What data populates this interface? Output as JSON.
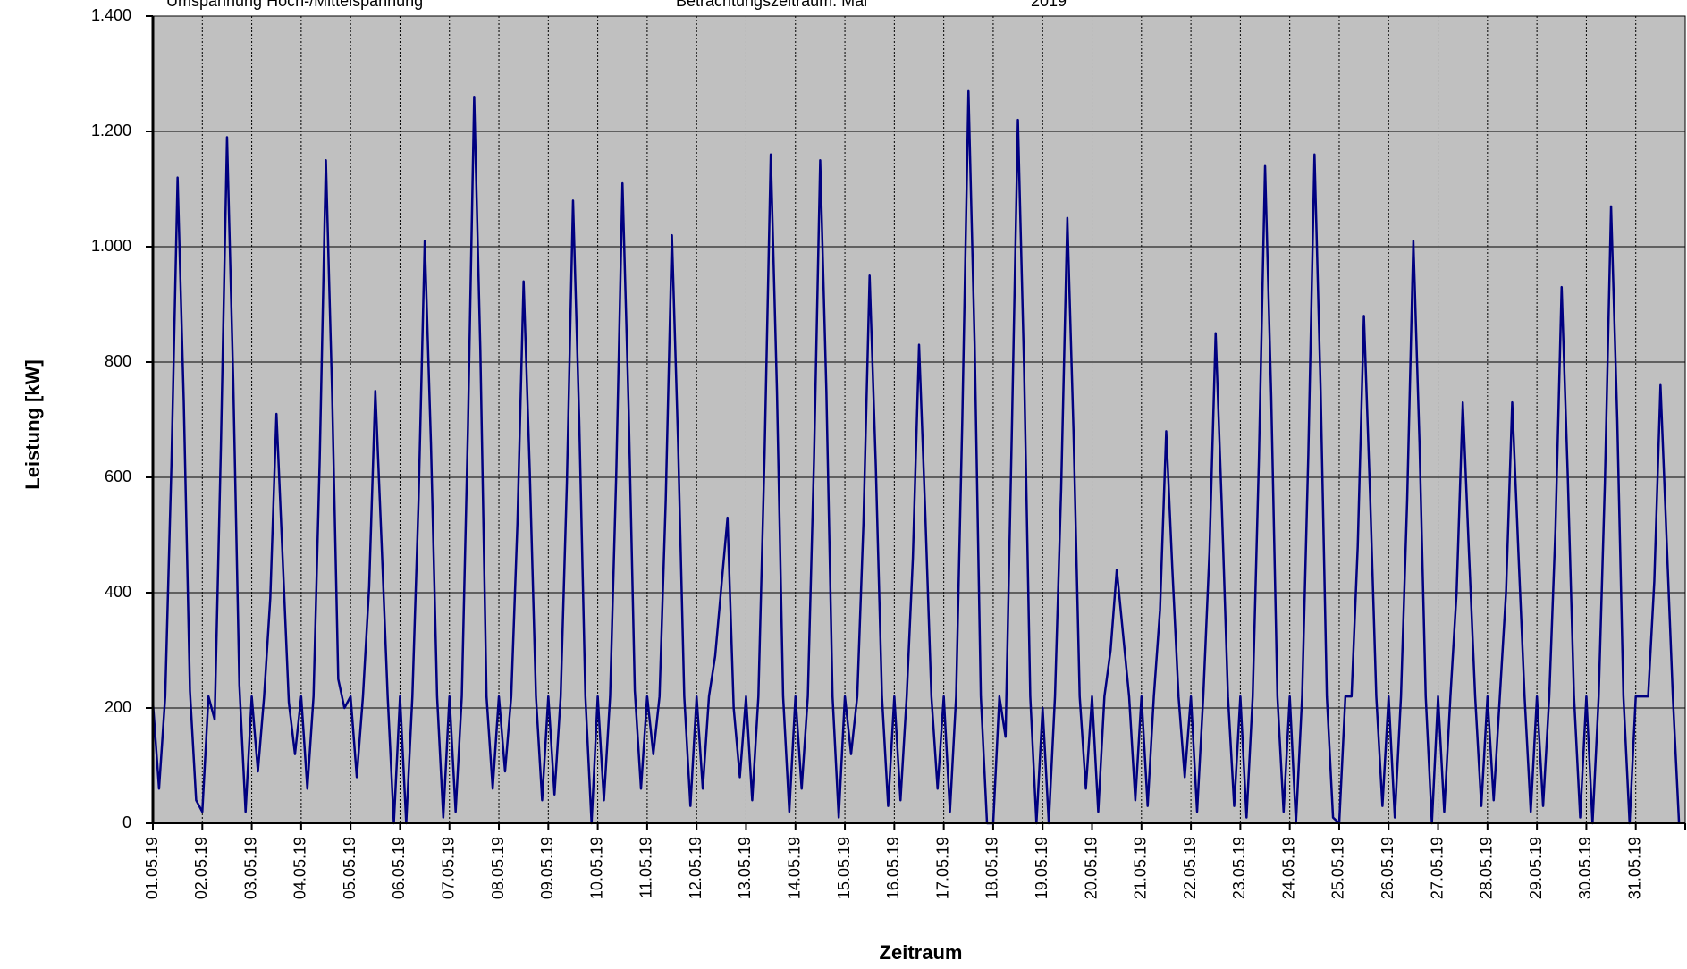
{
  "chart_data": {
    "type": "line",
    "title": "Umspannung Hoch-/Mittelspannung",
    "subtitle": "Betrachtungszeitraum: Mai",
    "year": "2019",
    "x_label": "Zeitraum",
    "y_label": "Leistung [kW]",
    "categories": [
      "01.05.19",
      null,
      null,
      null,
      null,
      null,
      null,
      null,
      "02.05.19",
      null,
      null,
      null,
      null,
      null,
      null,
      null,
      "03.05.19",
      null,
      null,
      null,
      null,
      null,
      null,
      null,
      "04.05.19",
      null,
      null,
      null,
      null,
      null,
      null,
      null,
      "05.05.19",
      null,
      null,
      null,
      null,
      null,
      null,
      null,
      "06.05.19",
      null,
      null,
      null,
      null,
      null,
      null,
      null,
      "07.05.19",
      null,
      null,
      null,
      null,
      null,
      null,
      null,
      "08.05.19",
      null,
      null,
      null,
      null,
      null,
      null,
      null,
      "09.05.19",
      null,
      null,
      null,
      null,
      null,
      null,
      null,
      "10.05.19",
      null,
      null,
      null,
      null,
      null,
      null,
      null,
      "11.05.19",
      null,
      null,
      null,
      null,
      null,
      null,
      null,
      "12.05.19",
      null,
      null,
      null,
      null,
      null,
      null,
      null,
      "13.05.19",
      null,
      null,
      null,
      null,
      null,
      null,
      null,
      "14.05.19",
      null,
      null,
      null,
      null,
      null,
      null,
      null,
      "15.05.19",
      null,
      null,
      null,
      null,
      null,
      null,
      null,
      "16.05.19",
      null,
      null,
      null,
      null,
      null,
      null,
      null,
      "17.05.19",
      null,
      null,
      null,
      null,
      null,
      null,
      null,
      "18.05.19",
      null,
      null,
      null,
      null,
      null,
      null,
      null,
      "19.05.19",
      null,
      null,
      null,
      null,
      null,
      null,
      null,
      "20.05.19",
      null,
      null,
      null,
      null,
      null,
      null,
      null,
      "21.05.19",
      null,
      null,
      null,
      null,
      null,
      null,
      null,
      "22.05.19",
      null,
      null,
      null,
      null,
      null,
      null,
      null,
      "23.05.19",
      null,
      null,
      null,
      null,
      null,
      null,
      null,
      "24.05.19",
      null,
      null,
      null,
      null,
      null,
      null,
      null,
      "25.05.19",
      null,
      null,
      null,
      null,
      null,
      null,
      null,
      "26.05.19",
      null,
      null,
      null,
      null,
      null,
      null,
      null,
      "27.05.19",
      null,
      null,
      null,
      null,
      null,
      null,
      null,
      "28.05.19",
      null,
      null,
      null,
      null,
      null,
      null,
      null,
      "29.05.19",
      null,
      null,
      null,
      null,
      null,
      null,
      null,
      "30.05.19",
      null,
      null,
      null,
      null,
      null,
      null,
      null,
      "31.05.19",
      null,
      null,
      null,
      null,
      null,
      null,
      null
    ],
    "series": [
      {
        "name": "Leistung",
        "color": "#000080",
        "values": [
          210,
          60,
          220,
          620,
          1120,
          730,
          230,
          40,
          20,
          220,
          180,
          650,
          1190,
          770,
          240,
          20,
          220,
          90,
          220,
          390,
          710,
          460,
          210,
          120,
          220,
          60,
          220,
          630,
          1150,
          750,
          250,
          200,
          220,
          80,
          220,
          410,
          750,
          490,
          220,
          0,
          220,
          0,
          220,
          560,
          1010,
          660,
          220,
          10,
          220,
          20,
          220,
          690,
          1260,
          820,
          220,
          60,
          220,
          90,
          220,
          520,
          940,
          610,
          220,
          40,
          220,
          50,
          220,
          590,
          1080,
          700,
          220,
          0,
          220,
          40,
          220,
          610,
          1110,
          720,
          230,
          60,
          220,
          120,
          220,
          560,
          1020,
          660,
          220,
          30,
          220,
          60,
          220,
          290,
          410,
          530,
          200,
          80,
          220,
          40,
          220,
          640,
          1160,
          750,
          220,
          20,
          220,
          60,
          220,
          630,
          1150,
          750,
          220,
          10,
          220,
          120,
          220,
          520,
          950,
          620,
          220,
          30,
          220,
          40,
          220,
          460,
          830,
          540,
          220,
          60,
          220,
          20,
          220,
          700,
          1270,
          830,
          220,
          0,
          0,
          220,
          150,
          670,
          1220,
          790,
          220,
          0,
          200,
          0,
          220,
          580,
          1050,
          680,
          220,
          60,
          220,
          20,
          220,
          300,
          440,
          330,
          220,
          40,
          220,
          30,
          220,
          370,
          680,
          440,
          220,
          80,
          220,
          20,
          220,
          470,
          850,
          550,
          220,
          30,
          220,
          10,
          220,
          630,
          1140,
          740,
          220,
          20,
          220,
          0,
          220,
          640,
          1160,
          750,
          220,
          10,
          0,
          220,
          220,
          480,
          880,
          570,
          220,
          30,
          220,
          10,
          220,
          560,
          1010,
          660,
          220,
          0,
          220,
          20,
          220,
          400,
          730,
          470,
          220,
          30,
          220,
          40,
          220,
          400,
          730,
          470,
          220,
          20,
          220,
          30,
          220,
          510,
          930,
          600,
          220,
          10,
          220,
          0,
          220,
          590,
          1070,
          700,
          220,
          0,
          220,
          220,
          220,
          420,
          760,
          490,
          220,
          0
        ]
      }
    ],
    "ylim": [
      0,
      1400
    ],
    "yticks": [
      0,
      200,
      400,
      600,
      800,
      {
        "value": 1000,
        "label": "1.000"
      },
      {
        "value": 1200,
        "label": "1.200"
      },
      {
        "value": 1400,
        "label": "1.400"
      }
    ],
    "grid": true,
    "background": "#c0c0c0"
  }
}
